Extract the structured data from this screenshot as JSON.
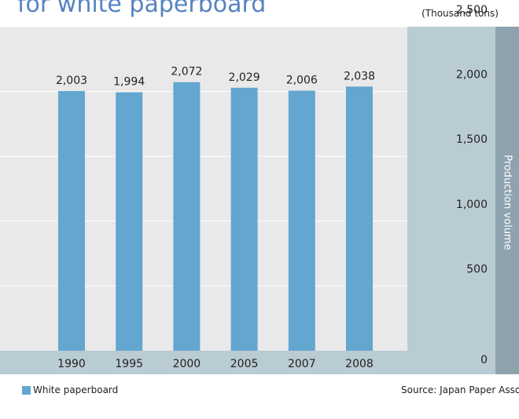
{
  "title": "for white paperboard",
  "unit": "(Thousand tons)",
  "legend": {
    "label": "White paperboard",
    "color": "#63a6d0"
  },
  "source": "Source: Japan Paper Associatio",
  "colors": {
    "plot_bg": "#e9e9e9",
    "axis_panel_bg": "#b9cbd3",
    "axis_strip_bg": "#8ea3ad",
    "bar": "#63a6d0",
    "grid": "#ffffff"
  },
  "chart_data": {
    "type": "bar",
    "categories": [
      "1990",
      "1995",
      "2000",
      "2005",
      "2007",
      "2008"
    ],
    "values": [
      2003,
      1994,
      2072,
      2029,
      2006,
      2038
    ],
    "value_labels": [
      "2,003",
      "1,994",
      "2,072",
      "2,029",
      "2,006",
      "2,038"
    ],
    "ylabel": "Production volume",
    "ylim": [
      0,
      2500
    ],
    "yticks": [
      0,
      500,
      1000,
      1500,
      2000,
      2500
    ],
    "ytick_labels": [
      "0",
      "500",
      "1,000",
      "1,500",
      "2,000",
      "2,500"
    ],
    "grid": true,
    "legend_position": "bottom-left"
  }
}
